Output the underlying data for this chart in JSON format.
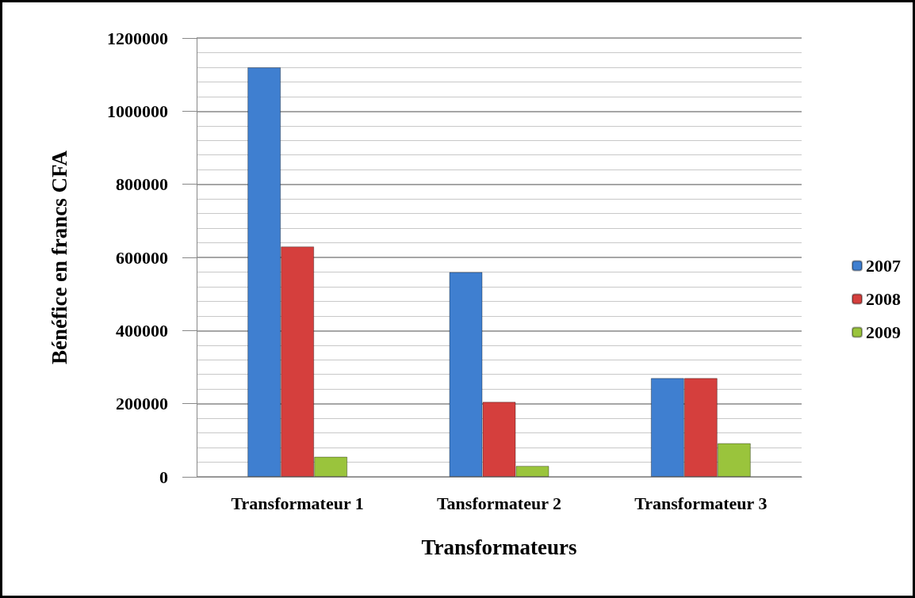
{
  "chart_data": {
    "type": "bar",
    "xlabel": "Transformateurs",
    "ylabel": "Bénéfice en francs CFA",
    "categories": [
      "Transformateur 1",
      "Tansformateur 2",
      "Transformateur 3"
    ],
    "series": [
      {
        "name": "2007",
        "color": "#3f7fd0",
        "values": [
          1120000,
          560000,
          270000
        ]
      },
      {
        "name": "2008",
        "color": "#d53f3d",
        "values": [
          630000,
          205000,
          270000
        ]
      },
      {
        "name": "2009",
        "color": "#9ac43c",
        "values": [
          55000,
          30000,
          92000
        ]
      }
    ],
    "ylim": [
      0,
      1200000
    ],
    "yticks": [
      0,
      200000,
      400000,
      600000,
      800000,
      1000000,
      1200000
    ],
    "grid": "y",
    "legend": "right"
  }
}
